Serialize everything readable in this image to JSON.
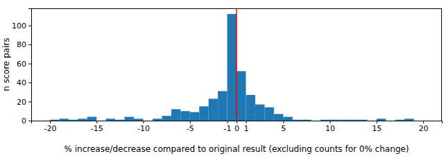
{
  "chart_data": {
    "type": "histogram",
    "x_label": "% increase/decrease compared to original result (excluding counts for 0% change)",
    "y_label": "n score pairs",
    "bins": [
      -20,
      -19,
      -18,
      -17,
      -16,
      -15,
      -14,
      -13,
      -12,
      -11,
      -10,
      -9,
      -8,
      -7,
      -6,
      -5,
      -4,
      -3,
      -2,
      -1,
      0,
      1,
      2,
      3,
      4,
      5,
      6,
      7,
      8,
      9,
      10,
      11,
      12,
      13,
      14,
      15,
      16,
      17,
      18,
      19,
      20
    ],
    "values": [
      1,
      2,
      1,
      2,
      4,
      0,
      2,
      1,
      4,
      2,
      0,
      2,
      5,
      12,
      10,
      9,
      15,
      23,
      31,
      112,
      52,
      27,
      17,
      14,
      7,
      4,
      1,
      1,
      0,
      1,
      1,
      1,
      1,
      1,
      0,
      2,
      0,
      1,
      2,
      0
    ],
    "color": "#1f77b4",
    "vline": {
      "x": 0,
      "color": "#ff0000"
    },
    "xlim": [
      -22,
      22
    ],
    "xticks": [
      -20,
      -15,
      -10,
      -5,
      -1,
      0,
      1,
      5,
      10,
      15,
      20
    ],
    "ylim": [
      0,
      118
    ],
    "yticks": [
      0,
      20,
      40,
      60,
      80,
      100
    ]
  }
}
